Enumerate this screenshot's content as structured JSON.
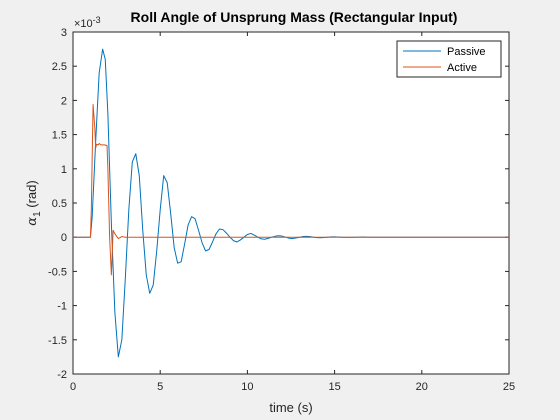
{
  "chart_data": {
    "type": "line",
    "title": "Roll Angle of Unsprung Mass (Rectangular Input)",
    "xlabel": "time (s)",
    "ylabel_symbol": "α",
    "ylabel_subscript": "1",
    "ylabel_unit": " (rad)",
    "exponent_base": "×10",
    "exponent_power": "-3",
    "xlim": [
      0,
      25
    ],
    "ylim": [
      -2,
      3
    ],
    "xticks": [
      0,
      5,
      10,
      15,
      20,
      25
    ],
    "yticks": [
      -2,
      -1.5,
      -1,
      -0.5,
      0,
      0.5,
      1,
      1.5,
      2,
      2.5,
      3
    ],
    "ytick_labels": [
      "-2",
      "-1.5",
      "-1",
      "-0.5",
      "0",
      "0.5",
      "1",
      "1.5",
      "2",
      "2.5",
      "3"
    ],
    "grid": false,
    "legend_position": "top-right",
    "series": [
      {
        "name": "Passive",
        "color": "#0072bd",
        "x": [
          0,
          1,
          1.1,
          1.3,
          1.5,
          1.7,
          1.85,
          2.0,
          2.2,
          2.4,
          2.6,
          2.8,
          3.0,
          3.2,
          3.4,
          3.6,
          3.8,
          4.0,
          4.2,
          4.4,
          4.6,
          4.8,
          5.0,
          5.2,
          5.4,
          5.6,
          5.8,
          6.0,
          6.2,
          6.4,
          6.6,
          6.8,
          7.0,
          7.2,
          7.4,
          7.6,
          7.8,
          8.0,
          8.2,
          8.4,
          8.6,
          8.8,
          9.0,
          9.2,
          9.4,
          9.6,
          9.8,
          10.0,
          10.2,
          10.4,
          10.6,
          10.8,
          11.0,
          11.2,
          11.4,
          11.6,
          11.8,
          12.0,
          12.2,
          12.4,
          12.6,
          12.8,
          13.0,
          13.2,
          13.4,
          13.6,
          13.8,
          14.0,
          14.2,
          14.4,
          14.6,
          14.8,
          15.0,
          15.4,
          15.8,
          16.2,
          16.6,
          17.0,
          17.5,
          18,
          19,
          20,
          21,
          22,
          23,
          24,
          25
        ],
        "values": [
          0,
          0,
          0.3,
          1.4,
          2.4,
          2.75,
          2.6,
          1.8,
          0.2,
          -1.1,
          -1.75,
          -1.5,
          -0.6,
          0.4,
          1.1,
          1.22,
          0.9,
          0.1,
          -0.55,
          -0.82,
          -0.7,
          -0.2,
          0.4,
          0.9,
          0.8,
          0.35,
          -0.15,
          -0.38,
          -0.36,
          -0.1,
          0.18,
          0.3,
          0.27,
          0.1,
          -0.08,
          -0.2,
          -0.18,
          -0.07,
          0.05,
          0.12,
          0.11,
          0.06,
          0.0,
          -0.05,
          -0.07,
          -0.04,
          0.0,
          0.04,
          0.055,
          0.03,
          0.0,
          -0.025,
          -0.03,
          -0.015,
          0.0,
          0.015,
          0.022,
          0.015,
          0.0,
          -0.015,
          -0.02,
          -0.01,
          0.0,
          0.01,
          0.012,
          0.008,
          0.0,
          -0.006,
          -0.008,
          -0.004,
          0.0,
          0.004,
          0.005,
          0.0,
          -0.003,
          0.0,
          0.002,
          0.0,
          0.0,
          0,
          0,
          0,
          0,
          0,
          0,
          0,
          0
        ]
      },
      {
        "name": "Active",
        "color": "#d95319",
        "x": [
          0,
          1.0,
          1.05,
          1.15,
          1.25,
          1.3,
          1.35,
          1.45,
          1.5,
          1.6,
          1.8,
          1.95,
          2.0,
          2.1,
          2.2,
          2.3,
          2.4,
          2.6,
          2.8,
          3.0,
          3.5,
          25
        ],
        "values": [
          0,
          0,
          0.4,
          1.94,
          1.6,
          1.3,
          1.36,
          1.35,
          1.37,
          1.35,
          1.35,
          1.34,
          1.0,
          0.0,
          -0.55,
          0.1,
          0.05,
          -0.02,
          0.01,
          0.0,
          0.0,
          0
        ]
      }
    ]
  }
}
